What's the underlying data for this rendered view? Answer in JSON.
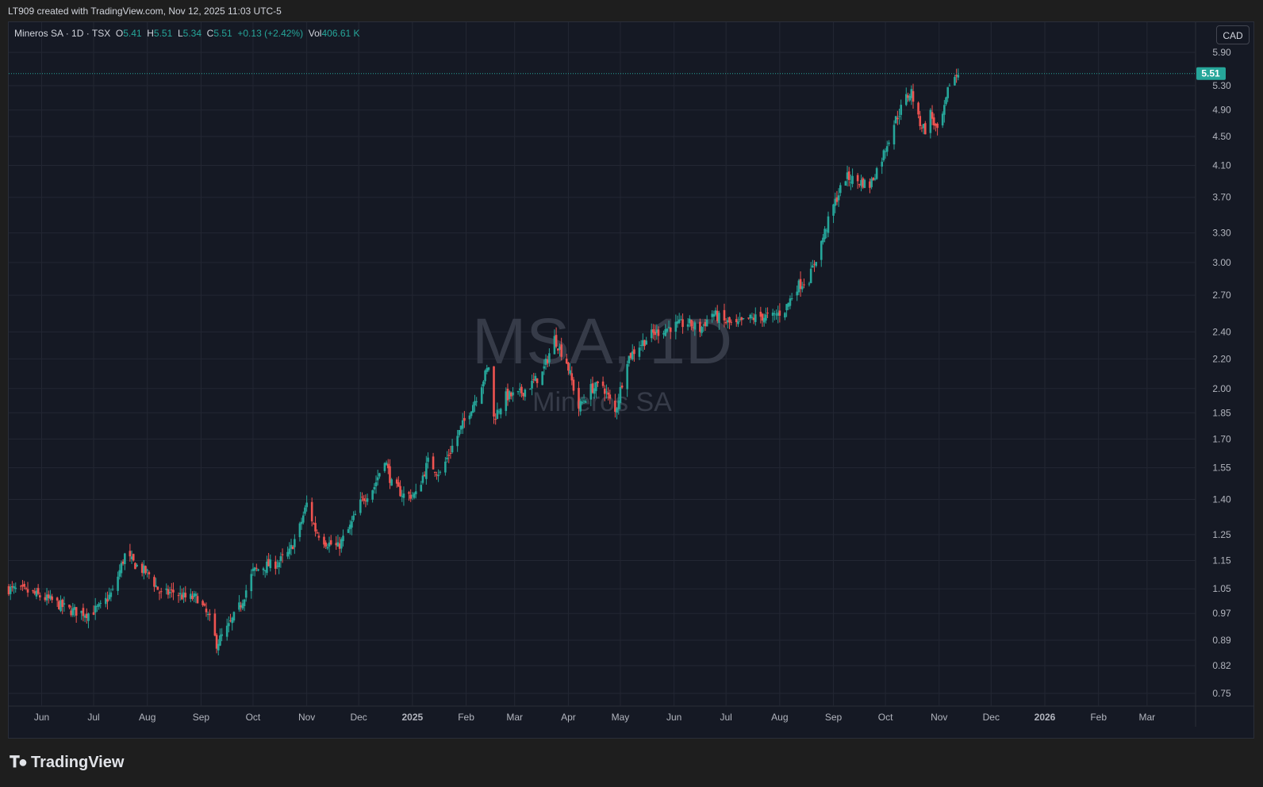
{
  "header": {
    "attribution": "LT909 created with TradingView.com, Nov 12, 2025 11:03 UTC-5"
  },
  "legend": {
    "name": "Mineros SA",
    "interval": "1D",
    "exchange": "TSX",
    "open_label": "O",
    "open": "5.41",
    "high_label": "H",
    "high": "5.51",
    "low_label": "L",
    "low": "5.34",
    "close_label": "C",
    "close": "5.51",
    "change": "+0.13 (+2.42%)",
    "vol_label": "Vol",
    "volume": "406.61 K"
  },
  "currency_button": "CAD",
  "watermark": {
    "symbol": "MSA, 1D",
    "name": "Mineros SA"
  },
  "footer": {
    "brand": "TradingView"
  },
  "colors": {
    "up": "#26a69a",
    "down": "#ef5350",
    "background": "#151924",
    "grid": "#232733",
    "text": "#d1d4dc"
  },
  "chart_data": {
    "type": "candlestick",
    "scale": "log",
    "grid": true,
    "last_price": "5.51",
    "y_ticks": [
      5.9,
      5.3,
      4.9,
      4.5,
      4.1,
      3.7,
      3.3,
      3.0,
      2.7,
      2.4,
      2.2,
      2.0,
      1.85,
      1.7,
      1.55,
      1.4,
      1.25,
      1.15,
      1.05,
      0.97,
      0.89,
      0.82,
      0.75
    ],
    "y_tick_labels": [
      "5.90",
      "5.30",
      "4.90",
      "4.50",
      "4.10",
      "3.70",
      "3.30",
      "3.00",
      "2.70",
      "2.40",
      "2.20",
      "2.00",
      "1.85",
      "1.70",
      "1.55",
      "1.40",
      "1.25",
      "1.15",
      "1.05",
      "0.97",
      "0.89",
      "0.82",
      "0.75"
    ],
    "x_ticks": [
      {
        "date": "2024-06-01",
        "label": "Jun"
      },
      {
        "date": "2024-07-01",
        "label": "Jul"
      },
      {
        "date": "2024-08-01",
        "label": "Aug"
      },
      {
        "date": "2024-09-01",
        "label": "Sep"
      },
      {
        "date": "2024-10-01",
        "label": "Oct"
      },
      {
        "date": "2024-11-01",
        "label": "Nov"
      },
      {
        "date": "2024-12-01",
        "label": "Dec"
      },
      {
        "date": "2025-01-01",
        "label": "2025"
      },
      {
        "date": "2025-02-01",
        "label": "Feb"
      },
      {
        "date": "2025-03-01",
        "label": "Mar"
      },
      {
        "date": "2025-04-01",
        "label": "Apr"
      },
      {
        "date": "2025-05-01",
        "label": "May"
      },
      {
        "date": "2025-06-01",
        "label": "Jun"
      },
      {
        "date": "2025-07-01",
        "label": "Jul"
      },
      {
        "date": "2025-08-01",
        "label": "Aug"
      },
      {
        "date": "2025-09-01",
        "label": "Sep"
      },
      {
        "date": "2025-10-01",
        "label": "Oct"
      },
      {
        "date": "2025-11-01",
        "label": "Nov"
      },
      {
        "date": "2025-12-01",
        "label": "Dec"
      },
      {
        "date": "2026-01-01",
        "label": "2026"
      },
      {
        "date": "2026-02-01",
        "label": "Feb"
      },
      {
        "date": "2026-03-01",
        "label": "Mar"
      }
    ],
    "x_range": [
      "2024-05-13",
      "2026-03-29"
    ],
    "y_range": [
      0.72,
      6.5
    ],
    "series_close": [
      {
        "date": "2024-05-13",
        "close": 1.05
      },
      {
        "date": "2024-05-24",
        "close": 1.04
      },
      {
        "date": "2024-06-07",
        "close": 1.01
      },
      {
        "date": "2024-06-17",
        "close": 0.98
      },
      {
        "date": "2024-06-28",
        "close": 0.97
      },
      {
        "date": "2024-07-05",
        "close": 0.99
      },
      {
        "date": "2024-07-12",
        "close": 1.04
      },
      {
        "date": "2024-07-19",
        "close": 1.17
      },
      {
        "date": "2024-07-26",
        "close": 1.13
      },
      {
        "date": "2024-08-02",
        "close": 1.1
      },
      {
        "date": "2024-08-09",
        "close": 1.03
      },
      {
        "date": "2024-08-16",
        "close": 1.04
      },
      {
        "date": "2024-08-23",
        "close": 1.02
      },
      {
        "date": "2024-08-30",
        "close": 1.02
      },
      {
        "date": "2024-09-06",
        "close": 0.95
      },
      {
        "date": "2024-09-10",
        "close": 0.88
      },
      {
        "date": "2024-09-17",
        "close": 0.93
      },
      {
        "date": "2024-09-24",
        "close": 1.0
      },
      {
        "date": "2024-10-01",
        "close": 1.11
      },
      {
        "date": "2024-10-08",
        "close": 1.13
      },
      {
        "date": "2024-10-15",
        "close": 1.14
      },
      {
        "date": "2024-10-22",
        "close": 1.18
      },
      {
        "date": "2024-10-28",
        "close": 1.28
      },
      {
        "date": "2024-11-01",
        "close": 1.38
      },
      {
        "date": "2024-11-06",
        "close": 1.27
      },
      {
        "date": "2024-11-12",
        "close": 1.22
      },
      {
        "date": "2024-11-19",
        "close": 1.2
      },
      {
        "date": "2024-11-26",
        "close": 1.28
      },
      {
        "date": "2024-12-03",
        "close": 1.4
      },
      {
        "date": "2024-12-10",
        "close": 1.46
      },
      {
        "date": "2024-12-16",
        "close": 1.6
      },
      {
        "date": "2024-12-20",
        "close": 1.47
      },
      {
        "date": "2024-12-27",
        "close": 1.42
      },
      {
        "date": "2025-01-03",
        "close": 1.42
      },
      {
        "date": "2025-01-10",
        "close": 1.58
      },
      {
        "date": "2025-01-17",
        "close": 1.52
      },
      {
        "date": "2025-01-24",
        "close": 1.66
      },
      {
        "date": "2025-01-31",
        "close": 1.8
      },
      {
        "date": "2025-02-07",
        "close": 1.95
      },
      {
        "date": "2025-02-14",
        "close": 2.15
      },
      {
        "date": "2025-02-17",
        "close": 1.82
      },
      {
        "date": "2025-02-24",
        "close": 1.95
      },
      {
        "date": "2025-03-03",
        "close": 1.96
      },
      {
        "date": "2025-03-10",
        "close": 2.02
      },
      {
        "date": "2025-03-17",
        "close": 2.1
      },
      {
        "date": "2025-03-24",
        "close": 2.35
      },
      {
        "date": "2025-03-31",
        "close": 2.18
      },
      {
        "date": "2025-04-07",
        "close": 1.88
      },
      {
        "date": "2025-04-14",
        "close": 2.0
      },
      {
        "date": "2025-04-21",
        "close": 2.02
      },
      {
        "date": "2025-04-28",
        "close": 1.85
      },
      {
        "date": "2025-05-05",
        "close": 2.2
      },
      {
        "date": "2025-05-12",
        "close": 2.3
      },
      {
        "date": "2025-05-19",
        "close": 2.38
      },
      {
        "date": "2025-05-26",
        "close": 2.42
      },
      {
        "date": "2025-06-02",
        "close": 2.45
      },
      {
        "date": "2025-06-09",
        "close": 2.47
      },
      {
        "date": "2025-06-16",
        "close": 2.42
      },
      {
        "date": "2025-06-23",
        "close": 2.55
      },
      {
        "date": "2025-06-30",
        "close": 2.48
      },
      {
        "date": "2025-07-07",
        "close": 2.45
      },
      {
        "date": "2025-07-14",
        "close": 2.5
      },
      {
        "date": "2025-07-21",
        "close": 2.52
      },
      {
        "date": "2025-07-28",
        "close": 2.52
      },
      {
        "date": "2025-08-04",
        "close": 2.58
      },
      {
        "date": "2025-08-11",
        "close": 2.78
      },
      {
        "date": "2025-08-18",
        "close": 2.85
      },
      {
        "date": "2025-08-25",
        "close": 3.2
      },
      {
        "date": "2025-09-01",
        "close": 3.6
      },
      {
        "date": "2025-09-08",
        "close": 3.95
      },
      {
        "date": "2025-09-15",
        "close": 3.9
      },
      {
        "date": "2025-09-22",
        "close": 3.85
      },
      {
        "date": "2025-09-29",
        "close": 4.2
      },
      {
        "date": "2025-10-06",
        "close": 4.7
      },
      {
        "date": "2025-10-13",
        "close": 5.1
      },
      {
        "date": "2025-10-16",
        "close": 5.2
      },
      {
        "date": "2025-10-20",
        "close": 4.75
      },
      {
        "date": "2025-10-24",
        "close": 4.6
      },
      {
        "date": "2025-10-27",
        "close": 4.85
      },
      {
        "date": "2025-10-31",
        "close": 4.55
      },
      {
        "date": "2025-11-04",
        "close": 4.9
      },
      {
        "date": "2025-11-07",
        "close": 5.35
      },
      {
        "date": "2025-11-12",
        "close": 5.51
      }
    ]
  }
}
